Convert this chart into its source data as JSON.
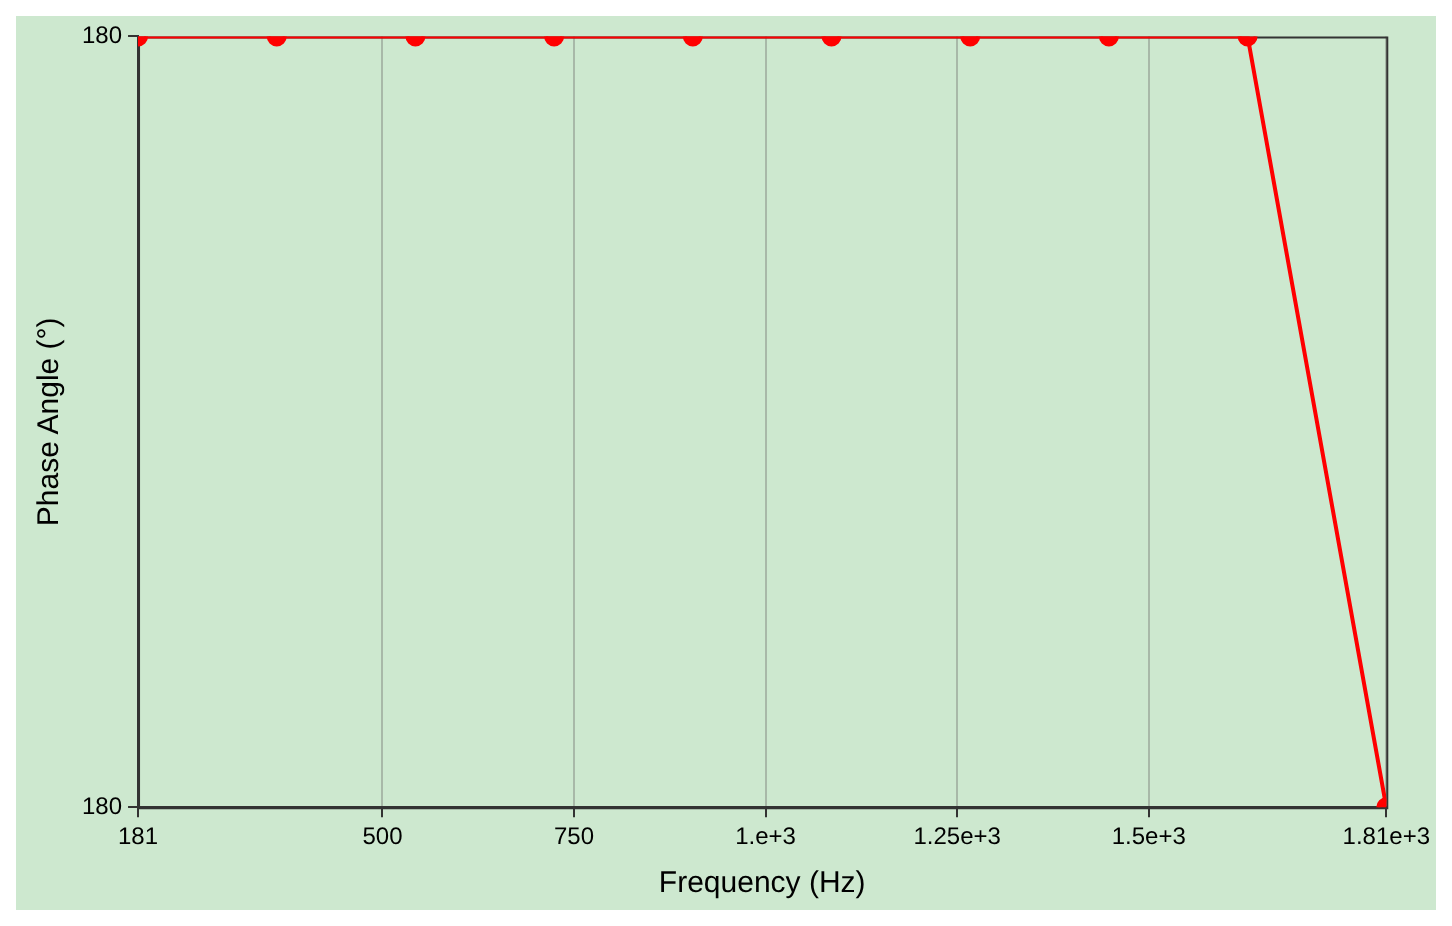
{
  "chart_data": {
    "type": "line",
    "xlabel": "Frequency (Hz)",
    "ylabel": "Phase Angle (°)",
    "x": [
      181,
      362,
      543,
      724,
      905,
      1086,
      1267,
      1448,
      1629,
      1810
    ],
    "series": [
      {
        "color": "#ff0000",
        "values": [
          180,
          180,
          180,
          180,
          180,
          180,
          180,
          180,
          180,
          179.99999
        ]
      }
    ],
    "xlim": [
      181,
      1810
    ],
    "xticks": [
      181,
      500,
      750,
      {
        "value": 1000,
        "label": "1.e+3"
      },
      {
        "value": 1250,
        "label": "1.25e+3"
      },
      {
        "value": 1500,
        "label": "1.5e+3"
      },
      {
        "value": 1810,
        "label": "1.81e+3"
      }
    ],
    "ylim": [
      179.99999,
      180
    ],
    "yticks": [
      {
        "value": 179.99999,
        "label": "180"
      },
      {
        "value": 180,
        "label": "180"
      }
    ],
    "grid": "x",
    "marker": "circle",
    "line_style": "solid",
    "legend": false
  }
}
